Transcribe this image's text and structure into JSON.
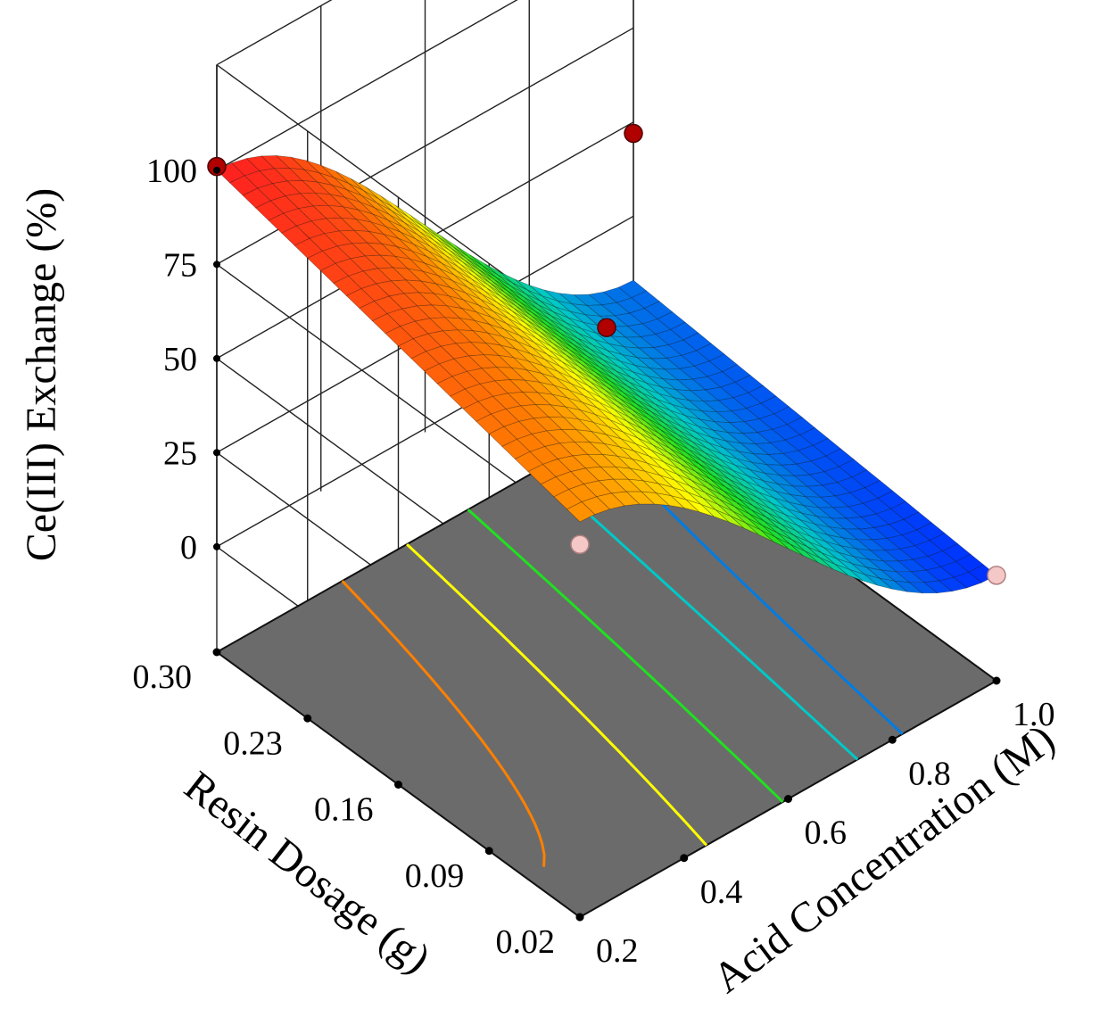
{
  "chart_data": {
    "type": "surface3d",
    "z_axis": {
      "label": "Ce(III) Exchange (%)",
      "range": [
        0,
        100
      ],
      "ticks": [
        0,
        25,
        50,
        75,
        100
      ],
      "tick_labels": [
        "0",
        "25",
        "50",
        "75",
        "100"
      ]
    },
    "x_axis": {
      "label": "Acid Concentration (M)",
      "range": [
        0.2,
        1.0
      ],
      "ticks": [
        0.2,
        0.4,
        0.6,
        0.8,
        1.0
      ],
      "tick_labels": [
        "0.2",
        "0.4",
        "0.6",
        "0.8",
        "1.0"
      ]
    },
    "y_axis": {
      "label": "Resin Dosage (g)",
      "range": [
        0.02,
        0.3
      ],
      "ticks": [
        0.02,
        0.09,
        0.16,
        0.23,
        0.3
      ],
      "tick_labels": [
        "0.02",
        "0.09",
        "0.16",
        "0.23",
        "0.30"
      ]
    },
    "surface": {
      "acid_concentration": [
        0.2,
        0.3,
        0.4,
        0.5,
        0.6,
        0.7,
        0.8,
        0.9,
        1.0
      ],
      "corner_values": {
        "acid_0.2_resin_0.30": 100,
        "acid_0.2_resin_0.02": 77,
        "acid_1.0_resin_0.30": 8,
        "acid_1.0_resin_0.02": 0
      }
    },
    "design_points": [
      {
        "acid": 0.2,
        "resin": 0.3,
        "exchange": 101,
        "position": "above"
      },
      {
        "acid": 0.2,
        "resin": 0.02,
        "exchange": 71,
        "position": "below"
      },
      {
        "acid": 0.6,
        "resin": 0.16,
        "exchange": 62,
        "position": "above"
      },
      {
        "acid": 1.0,
        "resin": 0.3,
        "exchange": 47,
        "position": "above"
      },
      {
        "acid": 1.0,
        "resin": 0.02,
        "exchange": 0,
        "position": "below"
      }
    ],
    "contour_levels": [
      80,
      60,
      40,
      20,
      10
    ],
    "colors": {
      "floor": "#6b6b6b",
      "point_above": "#b00000",
      "point_below": "#f5c8c8",
      "colormap": [
        "#ff2020",
        "#ff8000",
        "#ffff00",
        "#20e020",
        "#00c8c8",
        "#0030ff"
      ]
    },
    "grid": true,
    "legend": "none"
  }
}
